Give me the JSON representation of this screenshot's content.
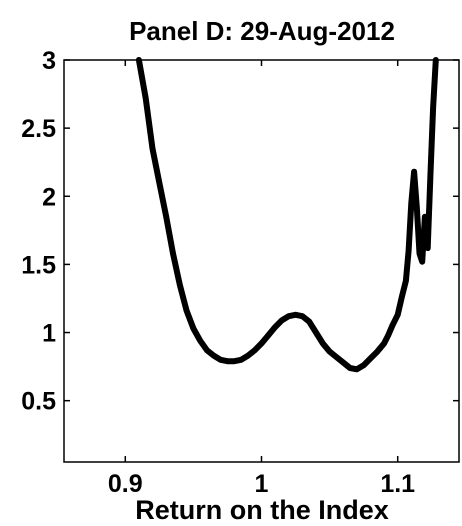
{
  "chart_data": {
    "type": "line",
    "title": "Panel D: 29-Aug-2012",
    "xlabel": "Return on the Index",
    "ylabel": "",
    "xlim": [
      0.855,
      1.145
    ],
    "ylim": [
      0.05,
      3.0
    ],
    "xticks": [
      0.9,
      1.0,
      1.1
    ],
    "xtick_labels": [
      "0.9",
      "1",
      "1.1"
    ],
    "yticks": [
      0.5,
      1.0,
      1.5,
      2.0,
      2.5,
      3.0
    ],
    "ytick_labels": [
      "0.5",
      "1",
      "1.5",
      "2",
      "2.5",
      "3"
    ],
    "grid": false,
    "series": [
      {
        "line_color": "#000000",
        "x": [
          0.91,
          0.915,
          0.92,
          0.925,
          0.93,
          0.935,
          0.94,
          0.945,
          0.95,
          0.955,
          0.96,
          0.965,
          0.97,
          0.975,
          0.98,
          0.985,
          0.99,
          0.995,
          1.0,
          1.005,
          1.01,
          1.015,
          1.02,
          1.025,
          1.03,
          1.035,
          1.04,
          1.045,
          1.05,
          1.055,
          1.06,
          1.065,
          1.07,
          1.075,
          1.08,
          1.085,
          1.09,
          1.093,
          1.096,
          1.1,
          1.103,
          1.106,
          1.108,
          1.11,
          1.112,
          1.114,
          1.116,
          1.118,
          1.12,
          1.122,
          1.124,
          1.126,
          1.128
        ],
        "y": [
          3.0,
          2.72,
          2.35,
          2.1,
          1.85,
          1.58,
          1.35,
          1.16,
          1.03,
          0.94,
          0.87,
          0.83,
          0.8,
          0.79,
          0.79,
          0.8,
          0.83,
          0.87,
          0.92,
          0.98,
          1.04,
          1.09,
          1.12,
          1.13,
          1.12,
          1.08,
          1.0,
          0.92,
          0.86,
          0.82,
          0.78,
          0.74,
          0.73,
          0.76,
          0.81,
          0.86,
          0.92,
          0.98,
          1.05,
          1.13,
          1.26,
          1.38,
          1.6,
          1.95,
          2.18,
          1.92,
          1.58,
          1.52,
          1.85,
          1.62,
          2.15,
          2.65,
          3.0
        ]
      }
    ]
  }
}
